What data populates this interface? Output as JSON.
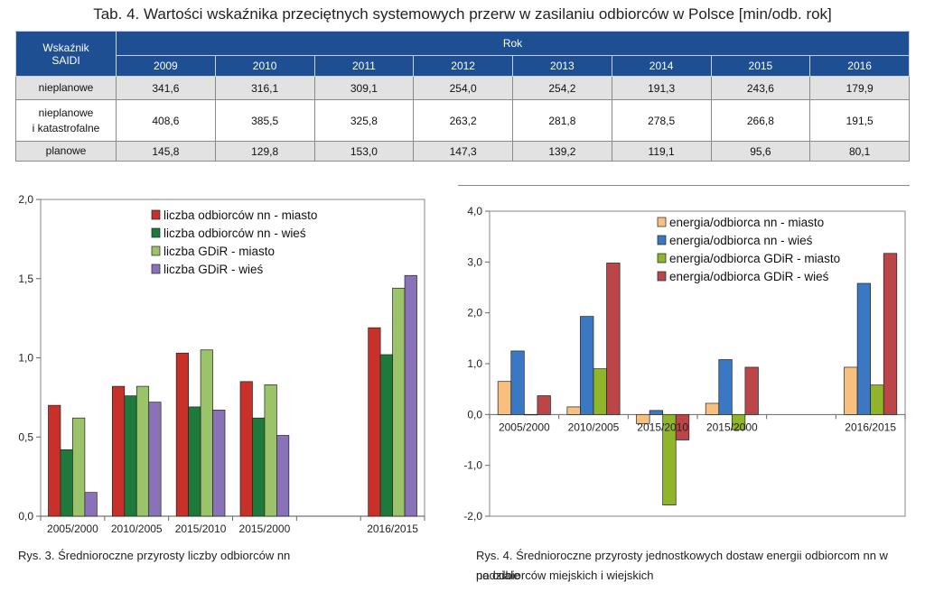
{
  "title": "Tab. 4. Wartości wskaźnika przeciętnych systemowych przerw w zasilaniu odbiorców w Polsce [min/odb. rok]",
  "table": {
    "corner_label": [
      "Wskaźnik",
      "SAIDI"
    ],
    "group_header": "Rok",
    "years": [
      "2009",
      "2010",
      "2011",
      "2012",
      "2013",
      "2014",
      "2015",
      "2016"
    ],
    "rows": [
      {
        "label": [
          "nieplanowe"
        ],
        "values": [
          "341,6",
          "316,1",
          "309,1",
          "254,0",
          "254,2",
          "191,3",
          "243,6",
          "179,9"
        ]
      },
      {
        "label": [
          "nieplanowe",
          "i katastrofalne"
        ],
        "values": [
          "408,6",
          "385,5",
          "325,8",
          "263,2",
          "281,8",
          "278,5",
          "266,8",
          "191,5"
        ]
      },
      {
        "label": [
          "planowe"
        ],
        "values": [
          "145,8",
          "129,8",
          "153,0",
          "147,3",
          "139,2",
          "119,1",
          "95,6",
          "80,1"
        ]
      }
    ]
  },
  "captions": {
    "fig3": "Rys. 3. Średnioroczne przyrosty liczby odbiorców nn",
    "fig4_line1": "Rys. 4. Średnioroczne przyrosty jednostkowych dostaw energii odbiorcom nn w podziale",
    "fig4_line2": "na odbiorców miejskich i wiejskich"
  },
  "colors": {
    "table_header": "#1f4f93",
    "red": "#c8302a",
    "dark_green": "#1e7a3a",
    "light_green": "#9bc36a",
    "purple": "#8a72b8",
    "orange": "#f8c07f",
    "blue": "#3a78c4",
    "olive": "#8fb52a",
    "dark_red": "#bb4547"
  },
  "chart_data": [
    {
      "type": "bar",
      "categories": [
        "2005/2000",
        "2010/2005",
        "2015/2010",
        "2015/2000",
        "",
        "2016/2015"
      ],
      "ylim": [
        0,
        2.0
      ],
      "yticks": [
        "0,0",
        "0,5",
        "1,0",
        "1,5",
        "2,0"
      ],
      "legend_position": "top-right",
      "grid": false,
      "series": [
        {
          "name": "liczba odbiorców nn - miasto",
          "color": "#c8302a",
          "values": [
            0.7,
            0.82,
            1.03,
            0.85,
            null,
            1.19
          ]
        },
        {
          "name": "liczba odbiorców nn - wieś",
          "color": "#1e7a3a",
          "values": [
            0.42,
            0.76,
            0.69,
            0.62,
            null,
            1.02
          ]
        },
        {
          "name": "liczba GDiR - miasto",
          "color": "#9bc36a",
          "values": [
            0.62,
            0.82,
            1.05,
            0.83,
            null,
            1.44
          ]
        },
        {
          "name": "liczba GDiR - wieś",
          "color": "#8a72b8",
          "values": [
            0.15,
            0.72,
            0.67,
            0.51,
            null,
            1.52
          ]
        }
      ]
    },
    {
      "type": "bar",
      "categories": [
        "2005/2000",
        "2010/2005",
        "2015/2010",
        "2015/2000",
        "",
        "2016/2015"
      ],
      "ylim": [
        -2.0,
        4.0
      ],
      "yticks": [
        "-2,0",
        "-1,0",
        "0,0",
        "1,0",
        "2,0",
        "3,0",
        "4,0"
      ],
      "legend_position": "top-right",
      "grid": false,
      "series": [
        {
          "name": "energia/odbiorca nn - miasto",
          "color": "#f8c07f",
          "values": [
            0.65,
            0.15,
            -0.18,
            0.22,
            null,
            0.93
          ]
        },
        {
          "name": "energia/odbiorca nn - wieś",
          "color": "#3a78c4",
          "values": [
            1.25,
            1.93,
            0.08,
            1.08,
            null,
            2.58
          ]
        },
        {
          "name": "energia/odbiorca GDiR - miasto",
          "color": "#8fb52a",
          "values": [
            0.0,
            0.9,
            -1.78,
            -0.3,
            null,
            0.58
          ]
        },
        {
          "name": "energia/odbiorca GDiR - wieś",
          "color": "#bb4547",
          "values": [
            0.37,
            2.98,
            -0.5,
            0.93,
            null,
            3.17
          ]
        }
      ]
    }
  ]
}
